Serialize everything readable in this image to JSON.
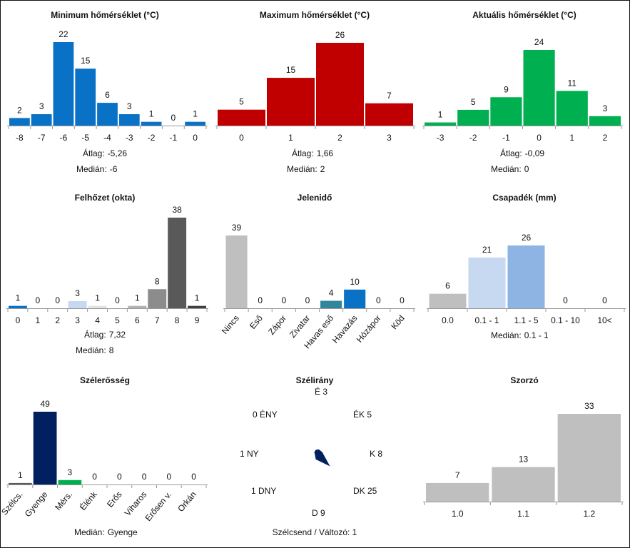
{
  "charts": {
    "min_temp": {
      "title": "Minimum hőmérséklet (°C)",
      "type": "bar",
      "categories": [
        "-8",
        "-7",
        "-6",
        "-5",
        "-4",
        "-3",
        "-2",
        "-1",
        "0"
      ],
      "values": [
        2,
        3,
        22,
        15,
        6,
        3,
        1,
        0,
        1
      ],
      "colors": [
        "#0a72c6",
        "#0a72c6",
        "#0a72c6",
        "#0a72c6",
        "#0a72c6",
        "#0a72c6",
        "#0a72c6",
        "#0a72c6",
        "#0a72c6"
      ],
      "ylim": [
        0,
        22
      ],
      "stats": [
        {
          "label": "Átlag:",
          "value": "-5,26"
        },
        {
          "label": "Medián:",
          "value": "-6"
        }
      ]
    },
    "max_temp": {
      "title": "Maximum hőmérséklet (°C)",
      "type": "bar",
      "categories": [
        "0",
        "1",
        "2",
        "3"
      ],
      "values": [
        5,
        15,
        26,
        7
      ],
      "colors": [
        "#c00000",
        "#c00000",
        "#c00000",
        "#c00000"
      ],
      "ylim": [
        0,
        26
      ],
      "stats": [
        {
          "label": "Átlag:",
          "value": "1,66"
        },
        {
          "label": "Medián:",
          "value": "2"
        }
      ]
    },
    "act_temp": {
      "title": "Aktuális hőmérséklet (°C)",
      "type": "bar",
      "categories": [
        "-3",
        "-2",
        "-1",
        "0",
        "1",
        "2"
      ],
      "values": [
        1,
        5,
        9,
        24,
        11,
        3
      ],
      "colors": [
        "#00b050",
        "#00b050",
        "#00b050",
        "#00b050",
        "#00b050",
        "#00b050"
      ],
      "ylim": [
        0,
        24
      ],
      "stats": [
        {
          "label": "Átlag:",
          "value": "-0,09"
        },
        {
          "label": "Medián:",
          "value": "0"
        }
      ]
    },
    "cloud": {
      "title": "Felhőzet (okta)",
      "type": "bar",
      "categories": [
        "0",
        "1",
        "2",
        "3",
        "4",
        "5",
        "6",
        "7",
        "8",
        "9"
      ],
      "values": [
        1,
        0,
        0,
        3,
        1,
        0,
        1,
        8,
        38,
        1
      ],
      "colors": [
        "#0a72c6",
        "#0a72c6",
        "#0a72c6",
        "#c6d9f0",
        "#e3e3e3",
        "#d0d0d0",
        "#b3b3b3",
        "#8c8c8c",
        "#595959",
        "#404040"
      ],
      "ylim": [
        0,
        38
      ],
      "stats": [
        {
          "label": "Átlag:",
          "value": "7,32"
        },
        {
          "label": "Medián:",
          "value": "8"
        }
      ]
    },
    "weather": {
      "title": "Jelenidő",
      "type": "bar",
      "categories": [
        "Nincs",
        "Eső",
        "Zápor",
        "Zivatar",
        "Havas eső",
        "Havazás",
        "Hózápor",
        "Köd"
      ],
      "values": [
        39,
        0,
        0,
        0,
        4,
        10,
        0,
        0
      ],
      "colors": [
        "#bfbfbf",
        "#bfbfbf",
        "#bfbfbf",
        "#bfbfbf",
        "#31859c",
        "#0a72c6",
        "#bfbfbf",
        "#bfbfbf"
      ],
      "ylim": [
        0,
        39
      ],
      "stats": []
    },
    "precip": {
      "title": "Csapadék (mm)",
      "type": "bar",
      "categories": [
        "0.0",
        "0.1 - 1",
        "1.1 - 5",
        "0.1 - 10",
        "10<"
      ],
      "values": [
        6,
        21,
        26,
        0,
        0
      ],
      "colors": [
        "#bfbfbf",
        "#c6d9f0",
        "#8eb4e3",
        "#8eb4e3",
        "#8eb4e3"
      ],
      "ylim": [
        0,
        26
      ],
      "stats": [
        {
          "label": "Medián:",
          "value": "0.1 - 1"
        }
      ]
    },
    "wind_strength": {
      "title": "Szélerősség",
      "type": "bar",
      "categories": [
        "Szélcs.",
        "Gyenge",
        "Mérs.",
        "Élénk",
        "Erős",
        "Viharos",
        "Erősen v.",
        "Orkán"
      ],
      "values": [
        1,
        49,
        3,
        0,
        0,
        0,
        0,
        0
      ],
      "colors": [
        "#595959",
        "#002060",
        "#00b050",
        "#bfbfbf",
        "#bfbfbf",
        "#bfbfbf",
        "#bfbfbf",
        "#bfbfbf"
      ],
      "ylim": [
        0,
        49
      ],
      "stats": [
        {
          "label": "Medián:",
          "value": "Gyenge"
        }
      ]
    },
    "wind_dir": {
      "title": "Szélirány",
      "type": "radar",
      "color": "#002060",
      "directions": [
        {
          "name": "É",
          "value": 3
        },
        {
          "name": "ÉK",
          "value": 5
        },
        {
          "name": "K",
          "value": 8
        },
        {
          "name": "DK",
          "value": 25
        },
        {
          "name": "D",
          "value": 9
        },
        {
          "name": "DNY",
          "value": 1
        },
        {
          "name": "NY",
          "value": 1
        },
        {
          "name": "ÉNY",
          "value": 0
        }
      ],
      "calm_text": "Szélcsend / Változó: 1"
    },
    "multiplier": {
      "title": "Szorzó",
      "type": "bar",
      "categories": [
        "1.0",
        "1.1",
        "1.2"
      ],
      "values": [
        7,
        13,
        33
      ],
      "colors": [
        "#bfbfbf",
        "#bfbfbf",
        "#bfbfbf"
      ],
      "ylim": [
        0,
        33
      ],
      "stats": []
    }
  }
}
